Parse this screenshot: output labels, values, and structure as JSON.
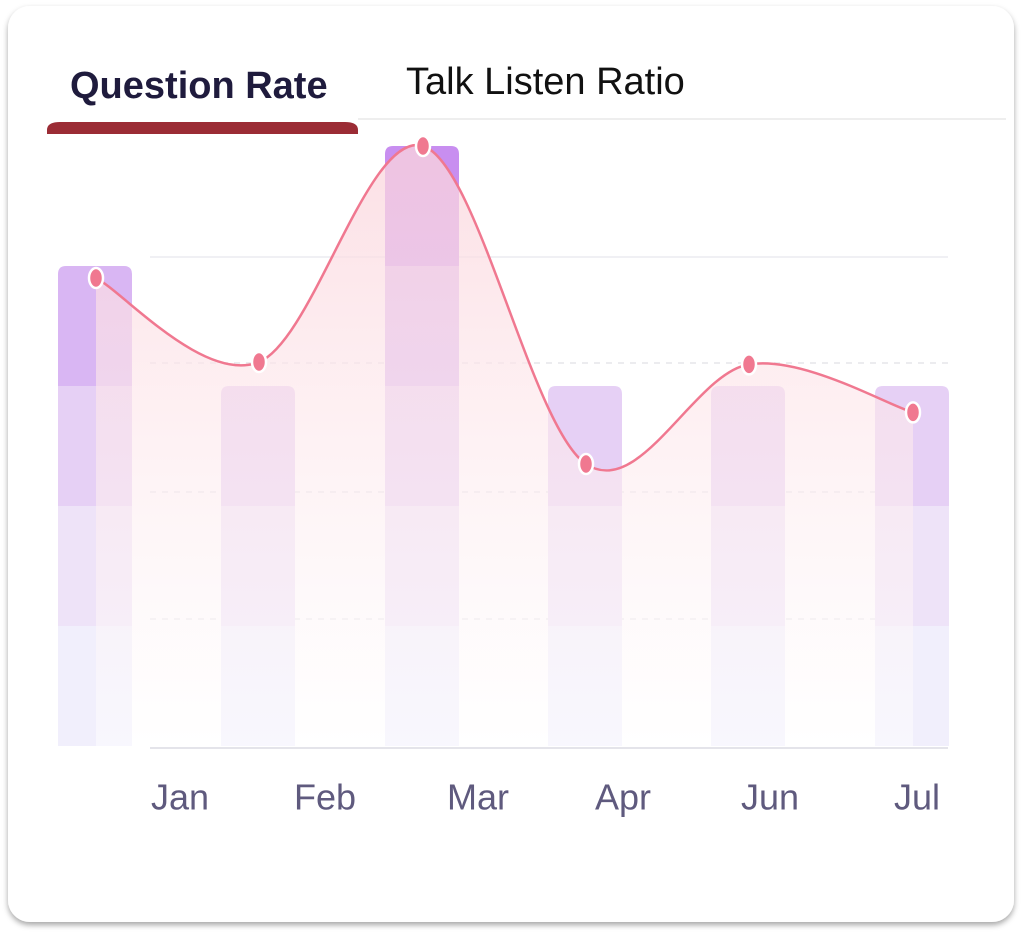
{
  "tabs": [
    "Question Rate",
    "Talk Listen Ratio"
  ],
  "chart_data": {
    "type": "bar",
    "categories": [
      "Jan",
      "Feb",
      "Mar",
      "Apr",
      "Jun",
      "Jul"
    ],
    "ylim": [
      0,
      5
    ],
    "series": [
      {
        "color": "#c88ef0",
        "values": [
          4,
          3,
          5,
          3,
          3,
          3
        ]
      },
      {
        "type": "line",
        "color": "#f07890",
        "values": [
          3.9,
          3.2,
          5.0,
          2.35,
          3.18,
          2.78
        ]
      }
    ]
  }
}
